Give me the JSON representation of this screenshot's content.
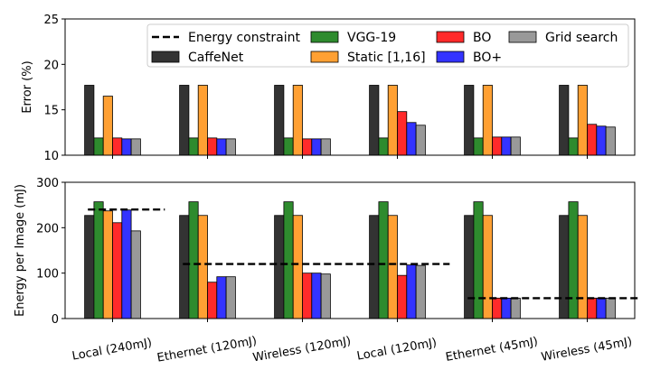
{
  "chart_data": [
    {
      "type": "bar",
      "ylabel": "Error (%)",
      "ylim": [
        10,
        25
      ],
      "yticks": [
        10,
        15,
        20,
        25
      ],
      "grid": false,
      "legend": {
        "placement": "top-right",
        "ncol": 4,
        "entries": [
          {
            "label": "Energy constraint",
            "kind": "line"
          },
          {
            "label": "CaffeNet",
            "kind": "bar",
            "series": 0
          },
          {
            "label": "VGG-19",
            "kind": "bar",
            "series": 1
          },
          {
            "label": "Static [1,16]",
            "kind": "bar",
            "series": 2
          },
          {
            "label": "BO",
            "kind": "bar",
            "series": 3
          },
          {
            "label": "BO+",
            "kind": "bar",
            "series": 4
          },
          {
            "label": "Grid search",
            "kind": "bar",
            "series": 5
          }
        ]
      },
      "categories": [
        "Local (240mJ)",
        "Ethernet (120mJ)",
        "Wireless (120mJ)",
        "Local (120mJ)",
        "Ethernet (45mJ)",
        "Wireless (45mJ)"
      ],
      "series": [
        {
          "name": "CaffeNet",
          "color": "#333333",
          "values": [
            17.7,
            17.7,
            17.7,
            17.7,
            17.7,
            17.7
          ]
        },
        {
          "name": "VGG-19",
          "color": "#2e8b2e",
          "values": [
            11.9,
            11.9,
            11.9,
            11.9,
            11.9,
            11.9
          ]
        },
        {
          "name": "Static [1,16]",
          "color": "#ffa033",
          "values": [
            16.5,
            17.7,
            17.7,
            17.7,
            17.7,
            17.7
          ]
        },
        {
          "name": "BO",
          "color": "#ff2a2a",
          "values": [
            11.9,
            11.9,
            11.8,
            14.8,
            12.0,
            13.4
          ]
        },
        {
          "name": "BO+",
          "color": "#3333ff",
          "values": [
            11.8,
            11.8,
            11.8,
            13.6,
            12.0,
            13.2
          ]
        },
        {
          "name": "Grid search",
          "color": "#999999",
          "values": [
            11.8,
            11.8,
            11.8,
            13.3,
            12.0,
            13.1
          ]
        }
      ]
    },
    {
      "type": "bar",
      "ylabel": "Energy per Image (mJ)",
      "ylim": [
        0,
        300
      ],
      "yticks": [
        0,
        100,
        200,
        300
      ],
      "grid": false,
      "categories": [
        "Local (240mJ)",
        "Ethernet (120mJ)",
        "Wireless (120mJ)",
        "Local (120mJ)",
        "Ethernet (45mJ)",
        "Wireless (45mJ)"
      ],
      "series": [
        {
          "name": "CaffeNet",
          "color": "#333333",
          "values": [
            227,
            227,
            227,
            227,
            227,
            227
          ]
        },
        {
          "name": "VGG-19",
          "color": "#2e8b2e",
          "values": [
            257,
            257,
            257,
            257,
            257,
            257
          ]
        },
        {
          "name": "Static [1,16]",
          "color": "#ffa033",
          "values": [
            237,
            227,
            227,
            227,
            227,
            227
          ]
        },
        {
          "name": "BO",
          "color": "#ff2a2a",
          "values": [
            211,
            80,
            100,
            95,
            45,
            45
          ]
        },
        {
          "name": "BO+",
          "color": "#3333ff",
          "values": [
            239,
            92,
            100,
            118,
            45,
            45
          ]
        },
        {
          "name": "Grid search",
          "color": "#999999",
          "values": [
            193,
            92,
            98,
            117,
            45,
            45
          ]
        }
      ],
      "energy_constraint": [
        {
          "value": 240,
          "from_category": 0,
          "to_category": 0
        },
        {
          "value": 120,
          "from_category": 1,
          "to_category": 3
        },
        {
          "value": 45,
          "from_category": 4,
          "to_category": 5
        }
      ]
    }
  ]
}
